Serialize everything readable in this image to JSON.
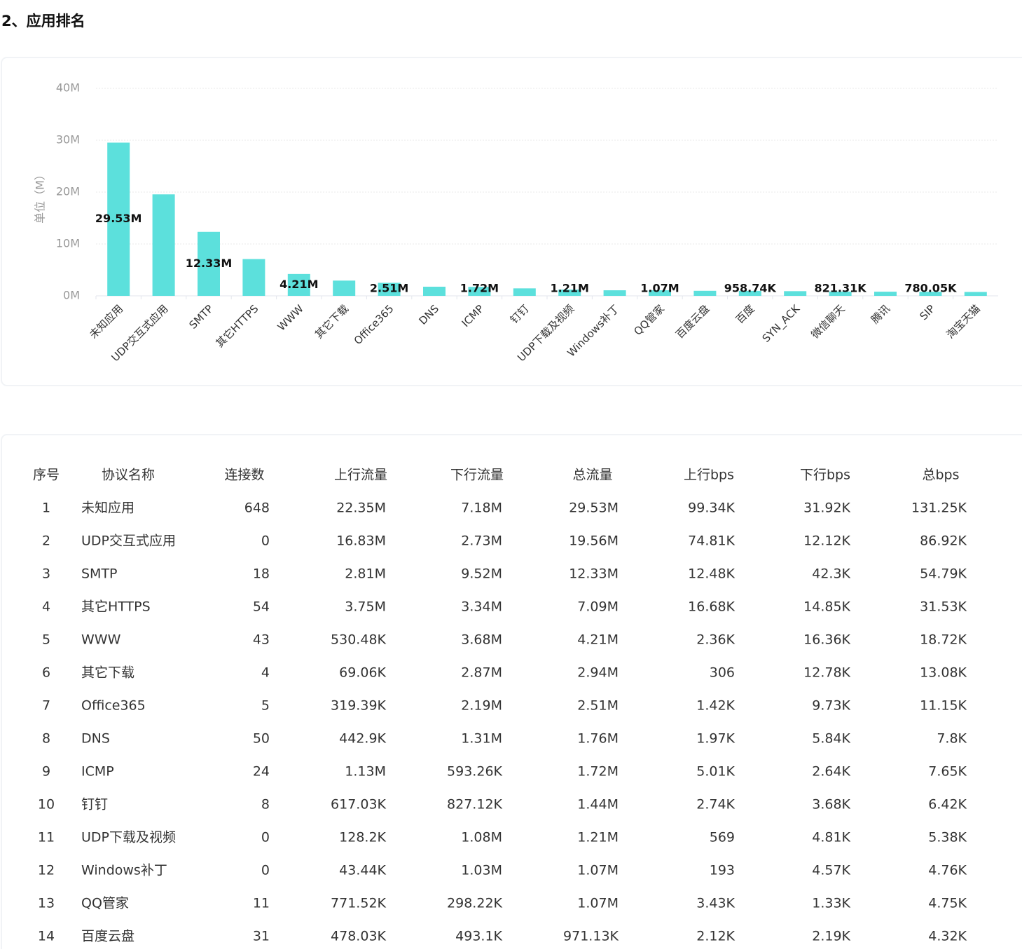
{
  "header": {
    "title": "2、应用排名"
  },
  "chart_data": {
    "type": "bar",
    "y_label": "单位（M）",
    "categories": [
      "未知应用",
      "UDP交互式应用",
      "SMTP",
      "其它HTTPS",
      "WWW",
      "其它下载",
      "Office365",
      "DNS",
      "ICMP",
      "钉钉",
      "UDP下载及视频",
      "Windows补丁",
      "QQ管家",
      "百度云盘",
      "百度",
      "SYN_ACK",
      "微信聊天",
      "腾讯",
      "SIP",
      "淘宝天猫"
    ],
    "values": [
      29.53,
      19.56,
      12.33,
      7.09,
      4.21,
      2.94,
      2.51,
      1.76,
      1.72,
      1.44,
      1.21,
      1.07,
      1.07,
      0.97113,
      0.95874,
      0.9,
      0.82131,
      0.8,
      0.78005,
      0.75
    ],
    "value_labels": [
      "29.53M",
      null,
      "12.33M",
      null,
      "4.21M",
      null,
      "2.51M",
      null,
      "1.72M",
      null,
      "1.21M",
      null,
      "1.07M",
      null,
      "958.74K",
      null,
      "821.31K",
      null,
      "780.05K",
      null
    ],
    "color": "#5ce0dc",
    "ylim": [
      0,
      40
    ],
    "yticks": [
      {
        "value": 0,
        "label": "0M"
      },
      {
        "value": 10,
        "label": "10M"
      },
      {
        "value": 20,
        "label": "20M"
      },
      {
        "value": 30,
        "label": "30M"
      },
      {
        "value": 40,
        "label": "40M"
      }
    ],
    "grid": true
  },
  "table": {
    "columns": [
      "序号",
      "协议名称",
      "连接数",
      "上行流量",
      "下行流量",
      "总流量",
      "上行bps",
      "下行bps",
      "总bps"
    ],
    "rows": [
      [
        "1",
        "未知应用",
        "648",
        "22.35M",
        "7.18M",
        "29.53M",
        "99.34K",
        "31.92K",
        "131.25K"
      ],
      [
        "2",
        "UDP交互式应用",
        "0",
        "16.83M",
        "2.73M",
        "19.56M",
        "74.81K",
        "12.12K",
        "86.92K"
      ],
      [
        "3",
        "SMTP",
        "18",
        "2.81M",
        "9.52M",
        "12.33M",
        "12.48K",
        "42.3K",
        "54.79K"
      ],
      [
        "4",
        "其它HTTPS",
        "54",
        "3.75M",
        "3.34M",
        "7.09M",
        "16.68K",
        "14.85K",
        "31.53K"
      ],
      [
        "5",
        "WWW",
        "43",
        "530.48K",
        "3.68M",
        "4.21M",
        "2.36K",
        "16.36K",
        "18.72K"
      ],
      [
        "6",
        "其它下载",
        "4",
        "69.06K",
        "2.87M",
        "2.94M",
        "306",
        "12.78K",
        "13.08K"
      ],
      [
        "7",
        "Office365",
        "5",
        "319.39K",
        "2.19M",
        "2.51M",
        "1.42K",
        "9.73K",
        "11.15K"
      ],
      [
        "8",
        "DNS",
        "50",
        "442.9K",
        "1.31M",
        "1.76M",
        "1.97K",
        "5.84K",
        "7.8K"
      ],
      [
        "9",
        "ICMP",
        "24",
        "1.13M",
        "593.26K",
        "1.72M",
        "5.01K",
        "2.64K",
        "7.65K"
      ],
      [
        "10",
        "钉钉",
        "8",
        "617.03K",
        "827.12K",
        "1.44M",
        "2.74K",
        "3.68K",
        "6.42K"
      ],
      [
        "11",
        "UDP下载及视频",
        "0",
        "128.2K",
        "1.08M",
        "1.21M",
        "569",
        "4.81K",
        "5.38K"
      ],
      [
        "12",
        "Windows补丁",
        "0",
        "43.44K",
        "1.03M",
        "1.07M",
        "193",
        "4.57K",
        "4.76K"
      ],
      [
        "13",
        "QQ管家",
        "11",
        "771.52K",
        "298.22K",
        "1.07M",
        "3.43K",
        "1.33K",
        "4.75K"
      ],
      [
        "14",
        "百度云盘",
        "31",
        "478.03K",
        "493.1K",
        "971.13K",
        "2.12K",
        "2.19K",
        "4.32K"
      ]
    ]
  }
}
